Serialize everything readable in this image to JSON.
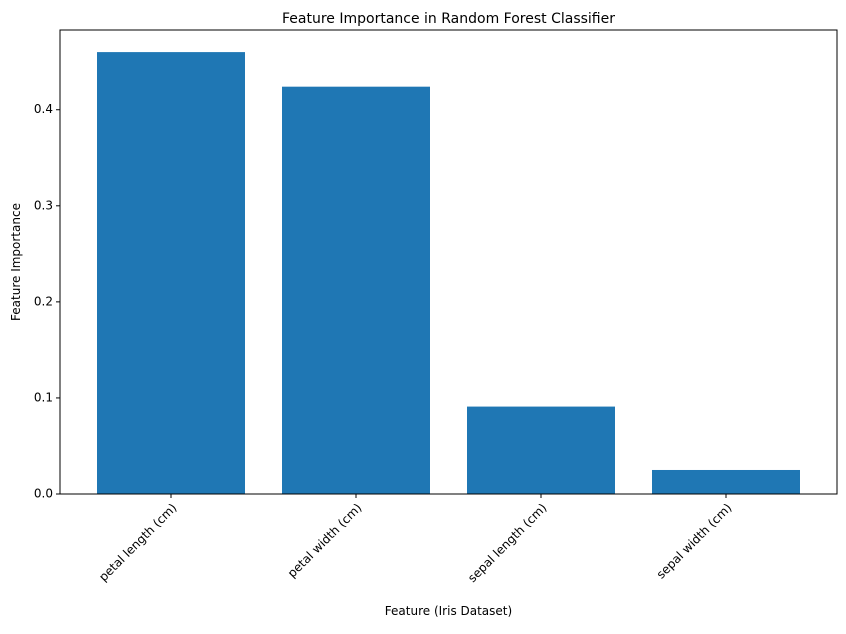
{
  "chart_data": {
    "type": "bar",
    "title": "Feature Importance in Random Forest Classifier",
    "xlabel": "Feature (Iris Dataset)",
    "ylabel": "Feature Importance",
    "categories": [
      "petal length (cm)",
      "petal width (cm)",
      "sepal length (cm)",
      "sepal width (cm)"
    ],
    "values": [
      0.46,
      0.424,
      0.091,
      0.025
    ],
    "ylim": [
      0,
      0.483
    ],
    "yticks": [
      0.0,
      0.1,
      0.2,
      0.3,
      0.4
    ],
    "ytick_labels": [
      "0.0",
      "0.1",
      "0.2",
      "0.3",
      "0.4"
    ],
    "grid": false,
    "bar_color": "#1f77b4",
    "xtick_rotation_deg": 45
  }
}
